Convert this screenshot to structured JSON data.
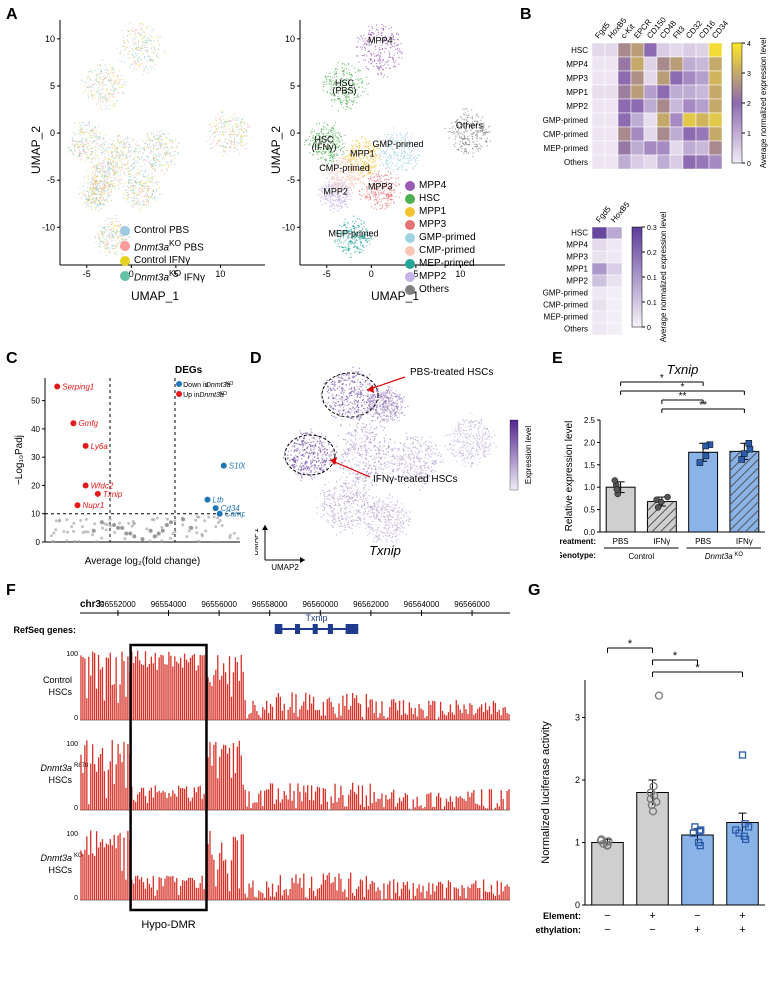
{
  "panelA": {
    "axis_x": "UMAP_1",
    "axis_y": "UMAP_2",
    "xticks": [
      -5,
      0,
      5,
      10
    ],
    "yticks": [
      -10,
      -5,
      0,
      5,
      10
    ],
    "left_legend": [
      {
        "label": "Control PBS",
        "color": "#9ecae1"
      },
      {
        "label": "Dnmt3aKO PBS",
        "color": "#fb9a99"
      },
      {
        "label": "Control IFNγ",
        "color": "#e6d21f"
      },
      {
        "label": "Dnmt3aKO IFNγ",
        "color": "#66c2a5"
      }
    ],
    "right_legend": [
      {
        "label": "MPP4",
        "color": "#9b59b6"
      },
      {
        "label": "HSC",
        "color": "#4caf50"
      },
      {
        "label": "MPP1",
        "color": "#f4c430"
      },
      {
        "label": "MPP3",
        "color": "#e57373"
      },
      {
        "label": "GMP-primed",
        "color": "#9fd3e0"
      },
      {
        "label": "CMP-primed",
        "color": "#f8c7b8"
      },
      {
        "label": "MEP-primed",
        "color": "#26a69a"
      },
      {
        "label": "MPP2",
        "color": "#c5b3e6"
      },
      {
        "label": "Others",
        "color": "#808080"
      }
    ],
    "right_labels": {
      "mpp4": "MPP4",
      "hsc_pbs": "HSC (PBS)",
      "hsc_ifng": "HSC (IFNγ)",
      "mpp1": "MPP1",
      "mpp2": "MPP2",
      "mpp3": "MPP3",
      "gmp": "GMP-primed",
      "cmp": "CMP-primed",
      "mep": "MEP-primed",
      "others": "Others"
    }
  },
  "panelB": {
    "top_heatmap": {
      "rows": [
        "HSC",
        "MPP4",
        "MPP3",
        "MPP1",
        "MPP2",
        "GMP-primed",
        "CMP-primed",
        "MEP-primed",
        "Others"
      ],
      "cols": [
        "Fgd5",
        "HoxB5",
        "c-Kit",
        "EPCR",
        "CD150",
        "CD48",
        "Flt3",
        "CD32",
        "CD16",
        "CD34"
      ],
      "cbar_label": "Average normalized expression level",
      "cmin": 0,
      "cmax": 4,
      "low_color": "#f2ecf5",
      "mid_color": "#8c6bb1",
      "high_color": "#fde725",
      "values": [
        [
          0.3,
          0.3,
          2.5,
          2.8,
          2.0,
          0.5,
          0.3,
          0.5,
          0.4,
          3.8
        ],
        [
          0.1,
          0.1,
          2.2,
          3.0,
          0.4,
          2.5,
          2.8,
          1.0,
          0.8,
          3.0
        ],
        [
          0.1,
          0.1,
          2.0,
          2.6,
          0.3,
          2.8,
          2.0,
          1.5,
          1.2,
          3.2
        ],
        [
          0.2,
          0.2,
          2.3,
          2.8,
          1.2,
          2.0,
          1.0,
          1.0,
          0.8,
          3.0
        ],
        [
          0.1,
          0.1,
          2.0,
          2.0,
          1.0,
          2.5,
          0.8,
          1.5,
          1.2,
          3.0
        ],
        [
          0.1,
          0.1,
          2.0,
          1.0,
          0.2,
          3.0,
          1.5,
          3.5,
          3.2,
          3.5
        ],
        [
          0.1,
          0.1,
          2.5,
          1.5,
          0.3,
          2.5,
          1.0,
          2.0,
          1.8,
          3.0
        ],
        [
          0.1,
          0.1,
          2.2,
          1.0,
          1.5,
          1.5,
          0.3,
          1.0,
          0.8,
          2.5
        ],
        [
          0.1,
          0.1,
          1.0,
          0.5,
          0.3,
          1.0,
          0.5,
          2.0,
          1.8,
          1.5
        ]
      ]
    },
    "bottom_heatmap": {
      "rows": [
        "HSC",
        "MPP4",
        "MPP3",
        "MPP1",
        "MPP2",
        "GMP-primed",
        "CMP-primed",
        "MEP-primed",
        "Others"
      ],
      "cols": [
        "Fgd5",
        "HoxB5"
      ],
      "cbar_label": "Average normalized expression level",
      "cmin": 0,
      "cmax": 0.3,
      "low_color": "#f7f4f9",
      "high_color": "#5e3c99",
      "values": [
        [
          0.28,
          0.12
        ],
        [
          0.04,
          0.02
        ],
        [
          0.03,
          0.02
        ],
        [
          0.15,
          0.06
        ],
        [
          0.08,
          0.03
        ],
        [
          0.02,
          0.01
        ],
        [
          0.03,
          0.01
        ],
        [
          0.02,
          0.01
        ],
        [
          0.02,
          0.01
        ]
      ]
    }
  },
  "panelC": {
    "title": "DEGs",
    "legend_down": "Down in Dnmt3aKO",
    "legend_up": "Up in Dnmt3aKO",
    "xlabel": "Average log₂(fold change)",
    "ylabel": "−Log₁₀Padj",
    "xlim": [
      -1.2,
      1.2
    ],
    "ylim": [
      0,
      58
    ],
    "vlines": [
      -0.4,
      0.4
    ],
    "hline": 10,
    "up_color": "#e41a1c",
    "down_color": "#1f77b4",
    "ns_color": "#999999",
    "points_labeled": [
      {
        "name": "Serping1",
        "x": -1.05,
        "y": 55,
        "side": "up"
      },
      {
        "name": "Gmfg",
        "x": -0.85,
        "y": 42,
        "side": "up"
      },
      {
        "name": "Ly6a",
        "x": -0.7,
        "y": 34,
        "side": "up"
      },
      {
        "name": "Wfdc2",
        "x": -0.7,
        "y": 20,
        "side": "up"
      },
      {
        "name": "Txnip",
        "x": -0.55,
        "y": 17,
        "side": "up"
      },
      {
        "name": "Nupr1",
        "x": -0.8,
        "y": 13,
        "side": "up"
      },
      {
        "name": "S100a9",
        "x": 1.0,
        "y": 27,
        "side": "down"
      },
      {
        "name": "Ltb",
        "x": 0.8,
        "y": 15,
        "side": "down"
      },
      {
        "name": "Cd34",
        "x": 0.9,
        "y": 12,
        "side": "down"
      },
      {
        "name": "Camp",
        "x": 0.95,
        "y": 10,
        "side": "down"
      }
    ],
    "points_ns": [
      [
        -0.2,
        3
      ],
      [
        -0.1,
        2
      ],
      [
        0.1,
        4
      ],
      [
        0.2,
        3
      ],
      [
        0.3,
        6
      ],
      [
        -0.3,
        5
      ],
      [
        0.0,
        1
      ],
      [
        0.35,
        7
      ],
      [
        -0.35,
        6
      ],
      [
        0.5,
        8
      ],
      [
        0.6,
        5
      ],
      [
        -0.5,
        7
      ],
      [
        -0.6,
        4
      ],
      [
        0.15,
        2
      ],
      [
        -0.15,
        3
      ],
      [
        0.25,
        4
      ],
      [
        -0.25,
        5
      ]
    ]
  },
  "panelD": {
    "title": "Txnip",
    "label_pbs": "PBS-treated HSCs",
    "label_ifng": "IFNγ-treated HSCs",
    "cbar": "Expression level",
    "axis_x": "UMAP2",
    "axis_y": "UMAP1",
    "low_color": "#efedf5",
    "high_color": "#54278f"
  },
  "panelE": {
    "title": "Txnip",
    "ylabel": "Relative expression level",
    "ylim": [
      0,
      2.5
    ],
    "yticks": [
      0,
      0.5,
      1.0,
      1.5,
      2.0,
      2.5
    ],
    "groups": [
      {
        "treat": "PBS",
        "geno": "Control",
        "mean": 1.0,
        "sem": 0.12,
        "fill": "#cfcfcf",
        "hatch": false,
        "points": [
          1.05,
          0.85,
          1.15,
          0.95
        ]
      },
      {
        "treat": "IFNγ",
        "geno": "Control",
        "mean": 0.68,
        "sem": 0.1,
        "fill": "#cfcfcf",
        "hatch": true,
        "points": [
          0.55,
          0.72,
          0.78,
          0.67
        ]
      },
      {
        "treat": "PBS",
        "geno": "Dnmt3aKO",
        "mean": 1.78,
        "sem": 0.2,
        "fill": "#8ab4e8",
        "hatch": false,
        "points": [
          1.55,
          1.95,
          1.7,
          1.92
        ]
      },
      {
        "treat": "IFNγ",
        "geno": "Dnmt3aKO",
        "mean": 1.8,
        "sem": 0.18,
        "fill": "#8ab4e8",
        "hatch": true,
        "points": [
          1.62,
          1.98,
          1.75,
          1.85
        ]
      }
    ],
    "sig": [
      {
        "from": 0,
        "to": 2,
        "label": "*"
      },
      {
        "from": 0,
        "to": 3,
        "label": "*"
      },
      {
        "from": 1,
        "to": 2,
        "label": "**"
      },
      {
        "from": 1,
        "to": 3,
        "label": "**"
      }
    ],
    "axis_treat_label": "Treatment:",
    "axis_geno_label": "Genotype:",
    "treat_labels": [
      "PBS",
      "IFNγ",
      "PBS",
      "IFNγ"
    ],
    "geno_labels": [
      "Control",
      "Dnmt3aKO"
    ]
  },
  "panelF": {
    "chr": "chr3:",
    "positions": [
      96552000,
      96554000,
      96556000,
      96558000,
      96560000,
      96562000,
      96564000,
      96566000
    ],
    "refseq_label": "RefSeq genes:",
    "gene_name": "Txnip",
    "dmr_label": "Hypo-DMR",
    "yticks": [
      0,
      100
    ],
    "track_color": "#d73027",
    "gene_color": "#1f3b8f",
    "tracks": [
      {
        "label": "Control HSCs"
      },
      {
        "label": "Dnmt3aR878 HSCs"
      },
      {
        "label": "Dnmt3aKO HSCs"
      }
    ]
  },
  "panelG": {
    "ylabel": "Normalized luciferase activity",
    "ylim": [
      0,
      3.6
    ],
    "yticks": [
      0,
      1,
      2,
      3
    ],
    "bars": [
      {
        "mean": 1.0,
        "sem": 0.05,
        "fill": "#cfcfcf",
        "points": [
          0.95,
          1.02,
          1.05,
          0.98,
          1.01,
          0.96,
          1.03
        ]
      },
      {
        "mean": 1.8,
        "sem": 0.2,
        "fill": "#cfcfcf",
        "points": [
          1.5,
          1.8,
          3.35,
          1.6,
          1.7,
          1.9,
          1.75,
          1.65
        ]
      },
      {
        "mean": 1.12,
        "sem": 0.1,
        "fill": "#8ab4e8",
        "points": [
          1.0,
          1.15,
          1.2,
          0.95,
          1.25,
          1.18
        ]
      },
      {
        "mean": 1.32,
        "sem": 0.15,
        "fill": "#8ab4e8",
        "points": [
          1.1,
          1.2,
          2.4,
          1.25,
          1.15,
          1.05,
          1.3
        ]
      }
    ],
    "sig": [
      {
        "from": 0,
        "to": 1,
        "label": "*"
      },
      {
        "from": 1,
        "to": 2,
        "label": "*"
      },
      {
        "from": 1,
        "to": 3,
        "label": "*"
      }
    ],
    "row_element_label": "Element:",
    "row_meth_label": "Methylation:",
    "element": [
      "−",
      "+",
      "−",
      "+"
    ],
    "methylation": [
      "−",
      "−",
      "+",
      "+"
    ]
  }
}
